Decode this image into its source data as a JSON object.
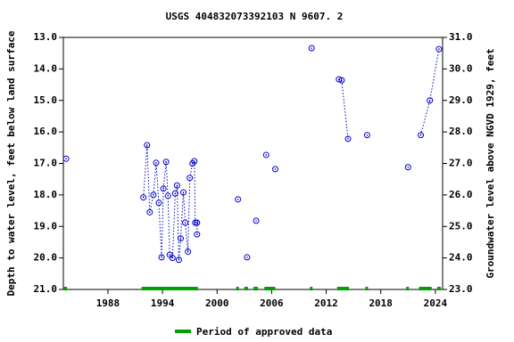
{
  "chart_data": {
    "type": "scatter",
    "title": "USGS 404832073392103 N  9607. 2",
    "y_label": "Depth to water level, feet below land surface",
    "y2_label": "Groundwater level above NGVD 1929, feet",
    "xlim": [
      1983.1,
      2024.8
    ],
    "xticks": [
      1988,
      1994,
      2000,
      2006,
      2012,
      2018,
      2024
    ],
    "ylim": [
      21,
      13
    ],
    "yticks": [
      {
        "value": 13,
        "label": "13.0"
      },
      {
        "value": 14,
        "label": "14.0"
      },
      {
        "value": 15,
        "label": "15.0"
      },
      {
        "value": 16,
        "label": "16.0"
      },
      {
        "value": 17,
        "label": "17.0"
      },
      {
        "value": 18,
        "label": "18.0"
      },
      {
        "value": 19,
        "label": "19.0"
      },
      {
        "value": 20,
        "label": "20.0"
      },
      {
        "value": 21,
        "label": "21.0"
      }
    ],
    "y2lim": [
      23,
      31
    ],
    "y2ticks": [
      {
        "value": 23,
        "label": "23.0"
      },
      {
        "value": 24,
        "label": "24.0"
      },
      {
        "value": 25,
        "label": "25.0"
      },
      {
        "value": 26,
        "label": "26.0"
      },
      {
        "value": 27,
        "label": "27.0"
      },
      {
        "value": 28,
        "label": "28.0"
      },
      {
        "value": 29,
        "label": "29.0"
      },
      {
        "value": 30,
        "label": "30.0"
      },
      {
        "value": 31,
        "label": "31.0"
      }
    ],
    "series": [
      {
        "color": "#0000cc",
        "x": [
          1983.4,
          null,
          1991.9,
          1992.3,
          1992.6,
          1993.0,
          1993.3,
          1993.6,
          1993.9,
          1994.1,
          1994.4,
          1994.6,
          1994.8,
          1995.1,
          1995.4,
          1995.6,
          1995.8,
          1996.0,
          1996.3,
          1996.5,
          1996.8,
          1997.0,
          1997.3,
          1997.5,
          1997.6,
          1997.8,
          1997.8,
          null,
          2002.3,
          null,
          2003.3,
          null,
          2004.3,
          null,
          2005.4,
          null,
          2006.4,
          null,
          2010.4,
          null,
          2013.4,
          2013.7,
          2014.4,
          null,
          2016.5,
          null,
          2021.0,
          null,
          2022.4,
          2023.4,
          2024.4
        ],
        "values": [
          16.85,
          null,
          18.08,
          16.42,
          18.55,
          18.0,
          16.98,
          18.25,
          19.98,
          17.8,
          16.95,
          18.03,
          19.9,
          20.0,
          17.95,
          17.7,
          20.06,
          19.38,
          17.92,
          18.88,
          19.8,
          17.46,
          17.0,
          16.93,
          18.88,
          18.88,
          19.25,
          null,
          18.14,
          null,
          19.98,
          null,
          18.82,
          null,
          16.73,
          null,
          17.18,
          null,
          13.34,
          null,
          14.33,
          14.36,
          16.22,
          null,
          16.1,
          null,
          17.12,
          null,
          16.1,
          15.0,
          13.37
        ]
      }
    ],
    "approved_periods": {
      "name": "Period of approved data",
      "color": "#00a000",
      "ranges": [
        [
          1983.1,
          1983.5
        ],
        [
          1991.7,
          1997.9
        ],
        [
          2002.1,
          2002.4
        ],
        [
          2003.0,
          2003.4
        ],
        [
          2004.0,
          2004.5
        ],
        [
          2005.2,
          2006.4
        ],
        [
          2010.2,
          2010.5
        ],
        [
          2013.2,
          2014.5
        ],
        [
          2016.3,
          2016.6
        ],
        [
          2020.8,
          2021.1
        ],
        [
          2022.2,
          2023.6
        ],
        [
          2024.2,
          2024.6
        ]
      ]
    }
  }
}
